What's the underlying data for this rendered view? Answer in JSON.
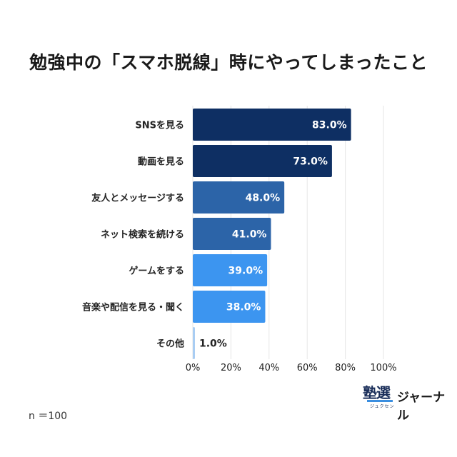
{
  "title": "勉強中の「スマホ脱線」時にやってしまったこと",
  "sample_size": "n ＝100",
  "brand": {
    "mark": "塾選",
    "ruby": "ジュクセン",
    "name": "ジャーナル"
  },
  "chart_data": {
    "type": "bar",
    "orientation": "horizontal",
    "categories": [
      "SNSを見る",
      "動画を見る",
      "友人とメッセージする",
      "ネット検索を続ける",
      "ゲームをする",
      "音楽や配信を見る・聞く",
      "その他"
    ],
    "values": [
      83.0,
      73.0,
      48.0,
      41.0,
      39.0,
      38.0,
      1.0
    ],
    "data_labels": [
      "83.0%",
      "73.0%",
      "48.0%",
      "41.0%",
      "39.0%",
      "38.0%",
      "1.0%"
    ],
    "bar_colors": [
      "#0e2f63",
      "#0e2f63",
      "#2c64a8",
      "#2c64a8",
      "#3c95f0",
      "#3c95f0",
      "#a9cdf3"
    ],
    "xlim": [
      0,
      100
    ],
    "x_ticks": [
      "0%",
      "20%",
      "40%",
      "60%",
      "80%",
      "100%"
    ],
    "grid": true
  }
}
